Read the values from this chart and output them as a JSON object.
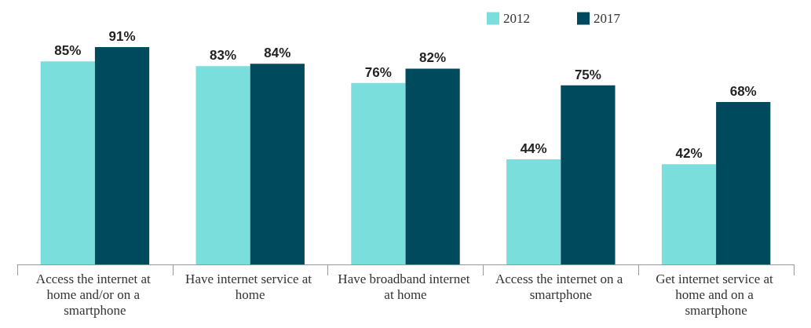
{
  "chart_data": {
    "type": "bar",
    "categories": [
      "Access the internet at home and/or on a smartphone",
      "Have internet service at home",
      "Have broadband internet at home",
      "Access the internet on a smartphone",
      "Get internet service at home and on a smartphone"
    ],
    "series": [
      {
        "name": "2012",
        "color": "#7adfdc",
        "values": [
          85,
          83,
          76,
          44,
          42
        ],
        "value_labels": [
          "85%",
          "83%",
          "76%",
          "44%",
          "42%"
        ]
      },
      {
        "name": "2017",
        "color": "#004a5e",
        "values": [
          91,
          84,
          82,
          75,
          68
        ],
        "value_labels": [
          "91%",
          "84%",
          "82%",
          "75%",
          "68%"
        ]
      }
    ],
    "legend": "top right"
  }
}
